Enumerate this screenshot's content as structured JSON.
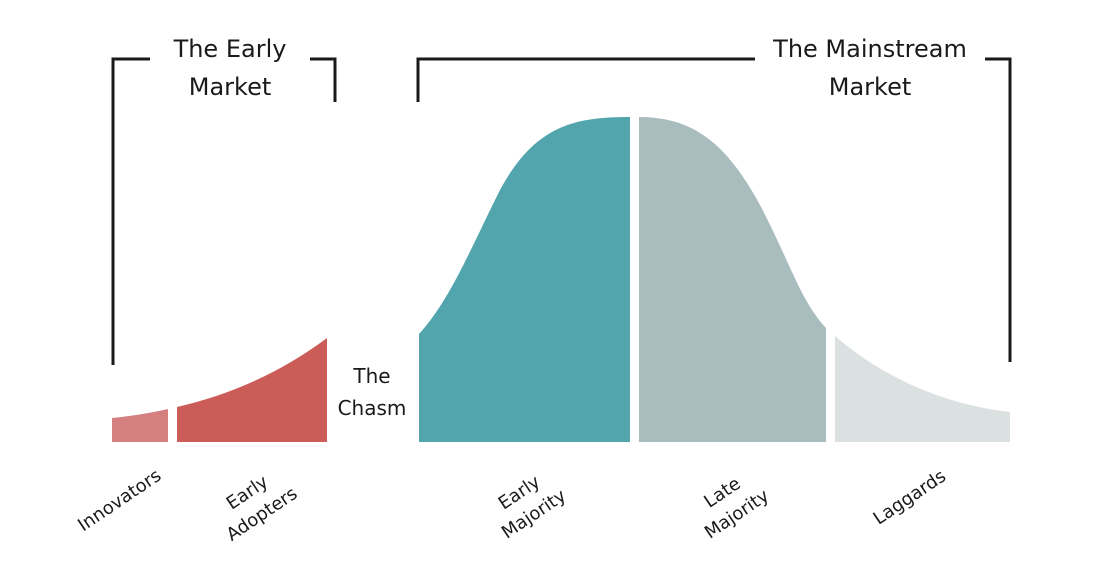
{
  "groups": {
    "early_market": {
      "line1": "The Early",
      "line2": "Market"
    },
    "mainstream_market": {
      "line1": "The Mainstream",
      "line2": "Market"
    }
  },
  "chasm": {
    "line1": "The",
    "line2": "Chasm"
  },
  "segments": [
    {
      "key": "innovators",
      "line1": "Innovators",
      "line2": "",
      "color": "#d67f7f"
    },
    {
      "key": "early_adopters",
      "line1": "Early",
      "line2": "Adopters",
      "color": "#cc5c58"
    },
    {
      "key": "early_majority",
      "line1": "Early",
      "line2": "Majority",
      "color": "#52a5ad"
    },
    {
      "key": "late_majority",
      "line1": "Late",
      "line2": "Majority",
      "color": "#a9bdbf"
    },
    {
      "key": "laggards",
      "line1": "Laggards",
      "line2": "",
      "color": "#dbe0e1"
    }
  ],
  "colors": {
    "bracket": "#1a1a1a"
  }
}
